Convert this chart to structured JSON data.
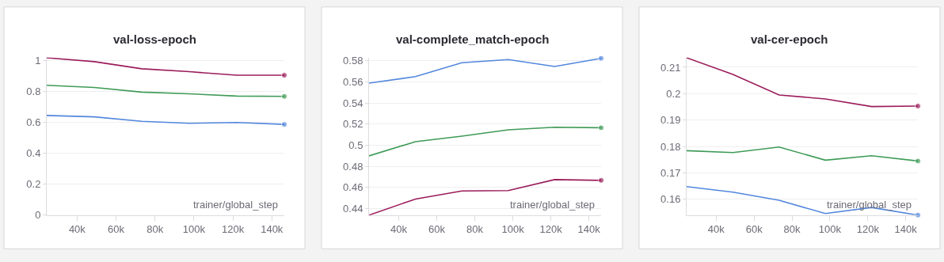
{
  "chart_data": [
    {
      "type": "line",
      "title": "val-loss-epoch",
      "xlabel": "trainer/global_step",
      "x": [
        24400,
        48800,
        73200,
        97600,
        122000,
        146400
      ],
      "xlim": [
        24400,
        146400
      ],
      "xticks": [
        {
          "value": 40000,
          "label": "40k"
        },
        {
          "value": 60000,
          "label": "60k"
        },
        {
          "value": 80000,
          "label": "80k"
        },
        {
          "value": 100000,
          "label": "100k"
        },
        {
          "value": 120000,
          "label": "120k"
        },
        {
          "value": 140000,
          "label": "140k"
        }
      ],
      "ylim": [
        0,
        1.02
      ],
      "yticks": [
        0,
        0.2,
        0.4,
        0.6,
        0.8,
        1
      ],
      "grid": "y",
      "series": [
        {
          "color": "#9b1c5b",
          "values": [
            1.018,
            0.993,
            0.947,
            0.928,
            0.905,
            0.905
          ]
        },
        {
          "color": "#3f9b57",
          "values": [
            0.84,
            0.826,
            0.796,
            0.785,
            0.77,
            0.768
          ]
        },
        {
          "color": "#5387dd",
          "values": [
            0.645,
            0.636,
            0.607,
            0.594,
            0.599,
            0.587
          ]
        }
      ]
    },
    {
      "type": "line",
      "title": "val-complete_match-epoch",
      "xlabel": "trainer/global_step",
      "x": [
        24400,
        48800,
        73200,
        97600,
        122000,
        146400
      ],
      "xlim": [
        24400,
        146400
      ],
      "xticks": [
        {
          "value": 40000,
          "label": "40k"
        },
        {
          "value": 60000,
          "label": "60k"
        },
        {
          "value": 80000,
          "label": "80k"
        },
        {
          "value": 100000,
          "label": "100k"
        },
        {
          "value": 120000,
          "label": "120k"
        },
        {
          "value": 140000,
          "label": "140k"
        }
      ],
      "ylim": [
        0.4338,
        0.583
      ],
      "yticks": [
        0.44,
        0.46,
        0.48,
        0.5,
        0.52,
        0.54,
        0.56,
        0.58
      ],
      "grid": "y",
      "series": [
        {
          "color": "#5387dd",
          "values": [
            0.5587,
            0.5649,
            0.578,
            0.581,
            0.5745,
            0.5822
          ]
        },
        {
          "color": "#3f9b57",
          "values": [
            0.4899,
            0.5033,
            0.5085,
            0.5145,
            0.517,
            0.5165
          ]
        },
        {
          "color": "#9b1c5b",
          "values": [
            0.4338,
            0.449,
            0.4567,
            0.457,
            0.4674,
            0.4667
          ]
        }
      ]
    },
    {
      "type": "line",
      "title": "val-cer-epoch",
      "xlabel": "trainer/global_step",
      "x": [
        24400,
        48800,
        73200,
        97600,
        122000,
        146400
      ],
      "xlim": [
        24400,
        146400
      ],
      "xticks": [
        {
          "value": 40000,
          "label": "40k"
        },
        {
          "value": 60000,
          "label": "60k"
        },
        {
          "value": 80000,
          "label": "80k"
        },
        {
          "value": 100000,
          "label": "100k"
        },
        {
          "value": 120000,
          "label": "120k"
        },
        {
          "value": 140000,
          "label": "140k"
        }
      ],
      "ylim": [
        0.154,
        0.2137
      ],
      "yticks": [
        0.16,
        0.17,
        0.18,
        0.19,
        0.2,
        0.21
      ],
      "grid": "y",
      "series": [
        {
          "color": "#9b1c5b",
          "values": [
            0.2136,
            0.2073,
            0.1995,
            0.198,
            0.1951,
            0.1953
          ]
        },
        {
          "color": "#3f9b57",
          "values": [
            0.1784,
            0.1777,
            0.1798,
            0.1748,
            0.1765,
            0.1745
          ]
        },
        {
          "color": "#5387dd",
          "values": [
            0.1648,
            0.1627,
            0.1596,
            0.1546,
            0.1569,
            0.154
          ]
        }
      ]
    }
  ]
}
